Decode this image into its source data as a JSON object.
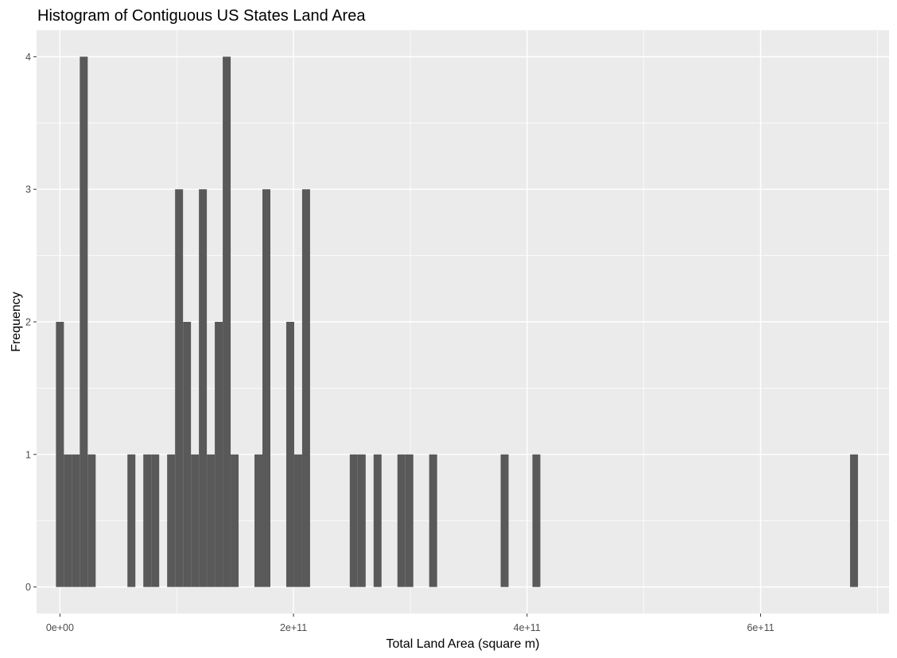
{
  "chart_data": {
    "type": "bar",
    "title": "Histogram of Contiguous US States Land Area",
    "xlabel": "Total Land Area (square m)",
    "ylabel": "Frequency",
    "xlim": [
      -20000000000,
      710000000000
    ],
    "ylim": [
      -0.2,
      4.2
    ],
    "x_ticks": [
      {
        "value": 0,
        "label": "0e+00"
      },
      {
        "value": 200000000000,
        "label": "2e+11"
      },
      {
        "value": 400000000000,
        "label": "4e+11"
      },
      {
        "value": 600000000000,
        "label": "6e+11"
      }
    ],
    "y_ticks": [
      {
        "value": 0,
        "label": "0"
      },
      {
        "value": 1,
        "label": "1"
      },
      {
        "value": 2,
        "label": "2"
      },
      {
        "value": 3,
        "label": "3"
      },
      {
        "value": 4,
        "label": "4"
      }
    ],
    "bin_width": 6800000000,
    "bins": [
      {
        "x": 0,
        "count": 2
      },
      {
        "x": 6800000000,
        "count": 1
      },
      {
        "x": 13600000000,
        "count": 1
      },
      {
        "x": 20400000000,
        "count": 4
      },
      {
        "x": 27200000000,
        "count": 1
      },
      {
        "x": 61200000000,
        "count": 1
      },
      {
        "x": 74800000000,
        "count": 1
      },
      {
        "x": 81600000000,
        "count": 1
      },
      {
        "x": 95200000000,
        "count": 1
      },
      {
        "x": 102000000000,
        "count": 3
      },
      {
        "x": 108800000000,
        "count": 2
      },
      {
        "x": 115600000000,
        "count": 1
      },
      {
        "x": 122400000000,
        "count": 3
      },
      {
        "x": 129200000000,
        "count": 1
      },
      {
        "x": 136000000000,
        "count": 2
      },
      {
        "x": 142800000000,
        "count": 4
      },
      {
        "x": 149600000000,
        "count": 1
      },
      {
        "x": 170000000000,
        "count": 1
      },
      {
        "x": 176800000000,
        "count": 3
      },
      {
        "x": 197200000000,
        "count": 2
      },
      {
        "x": 204000000000,
        "count": 1
      },
      {
        "x": 210800000000,
        "count": 3
      },
      {
        "x": 251600000000,
        "count": 1
      },
      {
        "x": 258400000000,
        "count": 1
      },
      {
        "x": 272000000000,
        "count": 1
      },
      {
        "x": 292400000000,
        "count": 1
      },
      {
        "x": 299200000000,
        "count": 1
      },
      {
        "x": 319600000000,
        "count": 1
      },
      {
        "x": 380800000000,
        "count": 1
      },
      {
        "x": 408000000000,
        "count": 1
      },
      {
        "x": 680000000000,
        "count": 1
      }
    ],
    "grid": true,
    "colors": {
      "panel_background": "#ebebeb",
      "gridline": "#ffffff",
      "bar": "#595959",
      "tick_label": "#4d4d4d",
      "text": "#000000"
    }
  }
}
